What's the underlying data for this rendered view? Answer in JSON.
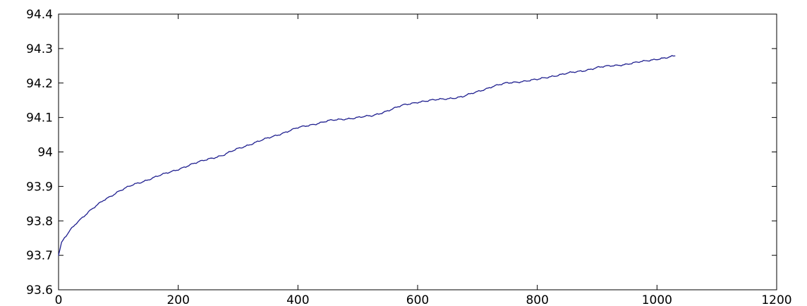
{
  "chart_data": {
    "type": "line",
    "title": "",
    "xlabel": "",
    "ylabel": "",
    "xlim": [
      0,
      1200
    ],
    "ylim": [
      93.6,
      94.4
    ],
    "grid": false,
    "x_ticks": [
      0,
      200,
      400,
      600,
      800,
      1000,
      1200
    ],
    "y_ticks": [
      93.6,
      93.7,
      93.8,
      93.9,
      94,
      94.1,
      94.2,
      94.3,
      94.4
    ],
    "x_tick_labels": [
      "0",
      "200",
      "400",
      "600",
      "800",
      "1000",
      "1200"
    ],
    "y_tick_labels": [
      "93.6",
      "93.7",
      "93.8",
      "93.9",
      "94",
      "94.1",
      "94.2",
      "94.3",
      "94.4"
    ],
    "series": [
      {
        "color": "#1f1f8f",
        "x": [
          0,
          5,
          10,
          20,
          30,
          40,
          50,
          75,
          100,
          125,
          150,
          175,
          200,
          225,
          250,
          275,
          300,
          325,
          350,
          375,
          400,
          425,
          450,
          475,
          500,
          525,
          550,
          575,
          600,
          625,
          650,
          675,
          700,
          725,
          750,
          775,
          800,
          825,
          850,
          875,
          900,
          925,
          950,
          975,
          1000,
          1015,
          1030
        ],
        "y": [
          93.7,
          93.735,
          93.75,
          93.775,
          93.795,
          93.81,
          93.825,
          93.86,
          93.885,
          93.905,
          93.92,
          93.935,
          93.95,
          93.965,
          93.98,
          93.99,
          94.01,
          94.025,
          94.04,
          94.055,
          94.07,
          94.08,
          94.09,
          94.095,
          94.1,
          94.105,
          94.12,
          94.135,
          94.145,
          94.15,
          94.155,
          94.16,
          94.175,
          94.19,
          94.2,
          94.205,
          94.21,
          94.22,
          94.228,
          94.235,
          94.245,
          94.25,
          94.255,
          94.262,
          94.27,
          94.273,
          94.278
        ]
      }
    ]
  }
}
